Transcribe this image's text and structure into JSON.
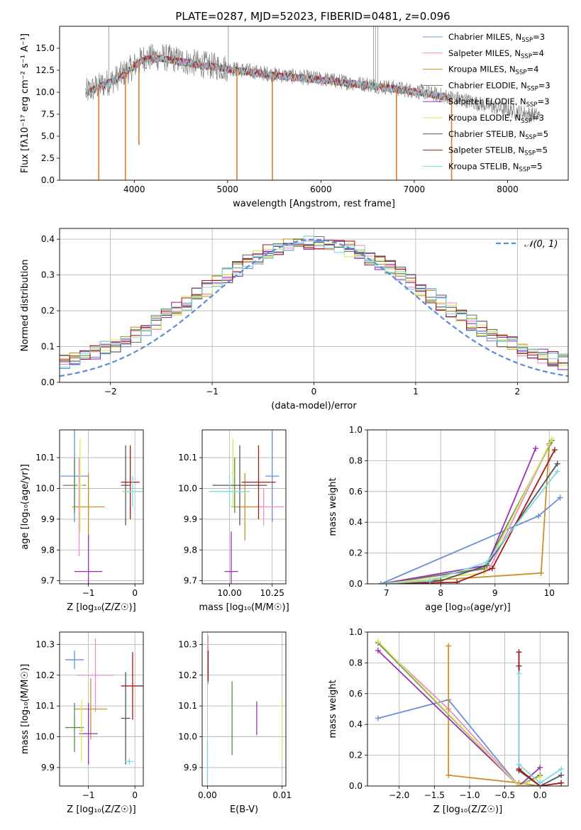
{
  "figure": {
    "title": "PLATE=0287, MJD=52023, FIBERID=0481, z=0.096",
    "colors": {
      "Chabrier MILES": "#6a8fd8",
      "Salpeter MILES": "#e98fc9",
      "Kroupa MILES": "#c8902b",
      "Chabrier ELODIE": "#5e8a52",
      "Salpeter ELODIE": "#9b30b3",
      "Kroupa ELODIE": "#d8e860",
      "Chabrier STELIB": "#555555",
      "Salpeter STELIB": "#a51919",
      "Kroupa STELIB": "#7fdbe0",
      "data": "#7f7f7f",
      "normal": "#5b8bd9",
      "orange": "#e07a28",
      "green": "#8fc830"
    }
  },
  "chart_data": [
    {
      "id": "spectrum",
      "type": "line",
      "title": "PLATE=0287, MJD=52023, FIBERID=0481, z=0.096",
      "xlabel": "wavelength [Angstrom, rest frame]",
      "ylabel": "Flux [fλ10⁻¹⁷ erg cm⁻² s⁻¹ A⁻¹]",
      "xlim": [
        3200,
        8650
      ],
      "ylim": [
        0,
        17.5
      ],
      "xticks": [
        4000,
        5000,
        6000,
        7000,
        8000
      ],
      "yticks": [
        0.0,
        2.5,
        5.0,
        7.5,
        10.0,
        12.5,
        15.0
      ],
      "ytick_labels": [
        "0.0",
        "2.5",
        "5.0",
        "7.5",
        "10.0",
        "12.5",
        "15.0"
      ],
      "legend_position": "upper right",
      "legend": [
        {
          "label": "Chabrier MILES, N",
          "sub": "SSP",
          "tail": "=3"
        },
        {
          "label": "Salpeter MILES, N",
          "sub": "SSP",
          "tail": "=4"
        },
        {
          "label": "Kroupa MILES, N",
          "sub": "SSP",
          "tail": "=4"
        },
        {
          "label": "Chabrier ELODIE, N",
          "sub": "SSP",
          "tail": "=3"
        },
        {
          "label": "Salpeter ELODIE, N",
          "sub": "SSP",
          "tail": "=3"
        },
        {
          "label": "Kroupa ELODIE, N",
          "sub": "SSP",
          "tail": "=3"
        },
        {
          "label": "Chabrier STELIB, N",
          "sub": "SSP",
          "tail": "=5"
        },
        {
          "label": "Salpeter STELIB, N",
          "sub": "SSP",
          "tail": "=5"
        },
        {
          "label": "Kroupa STELIB, N",
          "sub": "SSP",
          "tail": "=5"
        }
      ],
      "continuum": {
        "x": [
          3450,
          3600,
          3800,
          3950,
          4100,
          4300,
          4500,
          4700,
          4900,
          5100,
          5300,
          5500,
          5700,
          5900,
          6100,
          6300,
          6500,
          6700,
          6900,
          7100,
          7300,
          7500,
          7700,
          7900,
          8100,
          8300,
          8500
        ],
        "y": [
          9.8,
          10.6,
          11.5,
          12.6,
          13.9,
          14.0,
          13.6,
          13.2,
          12.9,
          12.6,
          12.3,
          12.0,
          11.8,
          11.6,
          11.4,
          11.1,
          10.9,
          10.6,
          10.3,
          10.0,
          9.6,
          9.2,
          8.7,
          8.2,
          7.8,
          7.4,
          7.1
        ]
      },
      "observed_x_range": [
        3480,
        8350
      ],
      "model_x_range": [
        3480,
        7400
      ],
      "emission_spikes": [
        {
          "x": 3727,
          "y": 17.5
        },
        {
          "x": 5007,
          "y": 17.5
        },
        {
          "x": 6563,
          "y": 17.5
        },
        {
          "x": 6585,
          "y": 17.5
        },
        {
          "x": 6610,
          "y": 17.5
        }
      ],
      "absorption_drops": [
        {
          "x": 3620,
          "y": 0.0
        },
        {
          "x": 3905,
          "y": 0.0
        },
        {
          "x": 4050,
          "y": 4.0
        },
        {
          "x": 5100,
          "y": 0.0
        },
        {
          "x": 5480,
          "y": 0.0
        },
        {
          "x": 6810,
          "y": 0.0
        },
        {
          "x": 7400,
          "y": 0.0
        }
      ]
    },
    {
      "id": "residuals",
      "type": "line",
      "xlabel": "(data-model)/error",
      "ylabel": "Normed distribution",
      "xlim": [
        -2.5,
        2.5
      ],
      "ylim": [
        0,
        0.43
      ],
      "xticks": [
        -2,
        -1,
        0,
        1,
        2
      ],
      "xtick_labels": [
        "−2",
        "−1",
        "0",
        "1",
        "2"
      ],
      "yticks": [
        0.0,
        0.1,
        0.2,
        0.3,
        0.4
      ],
      "ytick_labels": [
        "0.0",
        "0.1",
        "0.2",
        "0.3",
        "0.4"
      ],
      "grid": true,
      "legend_position": "upper right",
      "legend": "𝒩(0, 1)",
      "bin_width": 0.1,
      "gaussian": {
        "mu": 0,
        "sigma": 1
      }
    },
    {
      "id": "age_vs_Z",
      "type": "scatter",
      "xlabel": "Z [log₁₀(Z/Z☉)]",
      "ylabel": "age  [log₁₀(age/yr)]",
      "xlim": [
        -1.62,
        0.18
      ],
      "ylim": [
        9.69,
        10.19
      ],
      "xticks": [
        -1,
        0
      ],
      "xtick_labels": [
        "−1",
        "0"
      ],
      "yticks": [
        9.7,
        9.8,
        9.9,
        10.0,
        10.1
      ],
      "ytick_labels": [
        "9.7",
        "9.8",
        "9.9",
        "10.0",
        "10.1"
      ],
      "grid": true,
      "points": [
        {
          "series": "Chabrier MILES",
          "x": -1.3,
          "xerr": 0.3,
          "y": 10.04,
          "yerr": 0.15
        },
        {
          "series": "Salpeter MILES",
          "x": -1.2,
          "xerr": 0.1,
          "y": 9.94,
          "yerr": 0.16
        },
        {
          "series": "Kroupa MILES",
          "x": -1.0,
          "xerr": 0.35,
          "y": 9.94,
          "yerr": 0.11
        },
        {
          "series": "Chabrier ELODIE",
          "x": -1.3,
          "xerr": 0.25,
          "y": 10.01,
          "yerr": 0.09
        },
        {
          "series": "Salpeter ELODIE",
          "x": -1.0,
          "xerr": 0.3,
          "y": 9.73,
          "yerr": 0.12
        },
        {
          "series": "Kroupa ELODIE",
          "x": -1.18,
          "xerr": 0.06,
          "y": 10.01,
          "yerr": 0.15
        },
        {
          "series": "Chabrier STELIB",
          "x": -0.2,
          "xerr": 0.1,
          "y": 10.01,
          "yerr": 0.13
        },
        {
          "series": "Salpeter STELIB",
          "x": -0.1,
          "xerr": 0.2,
          "y": 10.02,
          "yerr": 0.12
        },
        {
          "series": "Kroupa STELIB",
          "x": -0.05,
          "xerr": 0.22,
          "y": 9.99,
          "yerr": 0.05
        }
      ]
    },
    {
      "id": "age_vs_mass",
      "type": "scatter",
      "xlabel": "mass [log₁₀(M/M☉)]",
      "xlim": [
        9.84,
        10.33
      ],
      "ylim": [
        9.69,
        10.19
      ],
      "xticks": [
        10.0,
        10.25
      ],
      "xtick_labels": [
        "10.00",
        "10.25"
      ],
      "yticks": [
        9.7,
        9.8,
        9.9,
        10.0,
        10.1
      ],
      "ytick_labels": [
        "9.7",
        "9.8",
        "9.9",
        "10.0",
        "10.1"
      ],
      "grid": true,
      "points": [
        {
          "series": "Chabrier MILES",
          "x": 10.25,
          "xerr": 0.04,
          "y": 10.04,
          "yerr": 0.15
        },
        {
          "series": "Salpeter MILES",
          "x": 10.2,
          "xerr": 0.12,
          "y": 9.94,
          "yerr": 0.06
        },
        {
          "series": "Kroupa MILES",
          "x": 10.09,
          "xerr": 0.08,
          "y": 9.94,
          "yerr": 0.11
        },
        {
          "series": "Chabrier ELODIE",
          "x": 10.03,
          "xerr": 0.01,
          "y": 10.01,
          "yerr": 0.09
        },
        {
          "series": "Salpeter ELODIE",
          "x": 10.01,
          "xerr": 0.04,
          "y": 9.73,
          "yerr": 0.13
        },
        {
          "series": "Kroupa ELODIE",
          "x": 10.02,
          "xerr": 0.01,
          "y": 10.05,
          "yerr": 0.11
        },
        {
          "series": "Chabrier STELIB",
          "x": 10.06,
          "xerr": 0.16,
          "y": 10.01,
          "yerr": 0.13
        },
        {
          "series": "Salpeter STELIB",
          "x": 10.17,
          "xerr": 0.1,
          "y": 10.02,
          "yerr": 0.12
        },
        {
          "series": "Kroupa STELIB",
          "x": 10.0,
          "xerr": 0.12,
          "y": 9.99,
          "yerr": 0.05
        }
      ]
    },
    {
      "id": "mass_weight_vs_age",
      "type": "line",
      "xlabel": "age  [log₁₀(age/yr)]",
      "ylabel": "mass weight",
      "xlim": [
        6.65,
        10.35
      ],
      "ylim": [
        0,
        1.0
      ],
      "xticks": [
        7,
        8,
        9,
        10
      ],
      "yticks": [
        0.0,
        0.2,
        0.4,
        0.6,
        0.8,
        1.0
      ],
      "ytick_labels": [
        "0.0",
        "0.2",
        "0.4",
        "0.6",
        "0.8",
        "1.0"
      ],
      "grid": true,
      "series": [
        {
          "name": "Chabrier MILES",
          "x": [
            6.9,
            9.8,
            10.2
          ],
          "y": [
            0.0,
            0.44,
            0.56
          ]
        },
        {
          "name": "Salpeter MILES",
          "x": [
            6.9,
            8.9,
            10.0
          ],
          "y": [
            0.0,
            0.1,
            0.9
          ]
        },
        {
          "name": "Kroupa MILES",
          "x": [
            6.9,
            9.85,
            10.0
          ],
          "y": [
            0.0,
            0.07,
            0.91
          ]
        },
        {
          "name": "Chabrier ELODIE",
          "x": [
            6.9,
            8.8,
            10.05
          ],
          "y": [
            0.0,
            0.1,
            0.93
          ]
        },
        {
          "name": "Salpeter ELODIE",
          "x": [
            6.9,
            8.85,
            9.75
          ],
          "y": [
            0.0,
            0.12,
            0.88
          ]
        },
        {
          "name": "Kroupa ELODIE",
          "x": [
            6.9,
            8.8,
            10.05
          ],
          "y": [
            0.0,
            0.07,
            0.94
          ]
        },
        {
          "name": "Chabrier STELIB",
          "x": [
            6.9,
            8.0,
            8.85,
            10.15
          ],
          "y": [
            0.0,
            0.02,
            0.12,
            0.78
          ]
        },
        {
          "name": "Salpeter STELIB",
          "x": [
            6.9,
            8.3,
            8.95,
            10.1
          ],
          "y": [
            0.0,
            0.01,
            0.1,
            0.87
          ]
        },
        {
          "name": "Kroupa STELIB",
          "x": [
            6.9,
            7.8,
            8.85,
            10.15
          ],
          "y": [
            0.0,
            0.02,
            0.14,
            0.73
          ]
        }
      ]
    },
    {
      "id": "mass_vs_Z",
      "type": "scatter",
      "xlabel": "Z [log₁₀(Z/Z☉)]",
      "ylabel": "mass [log₁₀(M/M☉)]",
      "xlim": [
        -1.62,
        0.18
      ],
      "ylim": [
        9.84,
        10.34
      ],
      "xticks": [
        -1,
        0
      ],
      "xtick_labels": [
        "−1",
        "0"
      ],
      "yticks": [
        9.9,
        10.0,
        10.1,
        10.2,
        10.3
      ],
      "ytick_labels": [
        "9.9",
        "10.0",
        "10.1",
        "10.2",
        "10.3"
      ],
      "grid": true,
      "points": [
        {
          "series": "Chabrier MILES",
          "x": -1.3,
          "xerr": 0.2,
          "y": 10.25,
          "yerr": 0.03
        },
        {
          "series": "Salpeter MILES",
          "x": -0.85,
          "xerr": 0.4,
          "y": 10.2,
          "yerr": 0.12
        },
        {
          "series": "Kroupa MILES",
          "x": -0.95,
          "xerr": 0.35,
          "y": 10.09,
          "yerr": 0.1
        },
        {
          "series": "Chabrier ELODIE",
          "x": -1.3,
          "xerr": 0.2,
          "y": 10.03,
          "yerr": 0.08
        },
        {
          "series": "Salpeter ELODIE",
          "x": -1.0,
          "xerr": 0.2,
          "y": 10.01,
          "yerr": 0.1
        },
        {
          "series": "Kroupa ELODIE",
          "x": -1.15,
          "xerr": 0.05,
          "y": 10.02,
          "yerr": 0.1
        },
        {
          "series": "Chabrier STELIB",
          "x": -0.2,
          "xerr": 0.1,
          "y": 10.06,
          "yerr": 0.15
        },
        {
          "series": "Salpeter STELIB",
          "x": -0.05,
          "xerr": 0.25,
          "y": 10.165,
          "yerr": 0.11
        },
        {
          "series": "Kroupa STELIB",
          "x": -0.12,
          "xerr": 0.1,
          "y": 9.92,
          "yerr": 0.01
        }
      ]
    },
    {
      "id": "mass_vs_EBV",
      "type": "scatter",
      "xlabel": "E(B-V)",
      "xlim": [
        -0.0007,
        0.0105
      ],
      "ylim": [
        9.84,
        10.34
      ],
      "xticks": [
        0.0,
        0.01
      ],
      "xtick_labels": [
        "0.00",
        "0.01"
      ],
      "yticks": [
        9.9,
        10.0,
        10.1,
        10.2,
        10.3
      ],
      "ytick_labels": [
        "9.9",
        "10.0",
        "10.1",
        "10.2",
        "10.3"
      ],
      "grid": true,
      "points": [
        {
          "series": "Salpeter MILES",
          "x": 0.0001,
          "y": 10.25,
          "yerr": 0.08
        },
        {
          "series": "Salpeter STELIB",
          "x": 0.0001,
          "y": 10.23,
          "yerr": 0.05
        },
        {
          "series": "Kroupa STELIB",
          "x": 0.0,
          "y": 9.92,
          "yerr": 0.07
        },
        {
          "series": "Chabrier ELODIE",
          "x": 0.0033,
          "y": 10.06,
          "yerr": 0.12
        },
        {
          "series": "Salpeter ELODIE",
          "x": 0.0066,
          "y": 10.06,
          "yerr": 0.055
        },
        {
          "series": "Kroupa ELODIE",
          "x": 0.01,
          "y": 10.02,
          "yerr": 0.1
        }
      ]
    },
    {
      "id": "mass_weight_vs_Z",
      "type": "line",
      "xlabel": "Z [log₁₀(Z/Z☉)]",
      "ylabel": "mass weight",
      "xlim": [
        -2.45,
        0.4
      ],
      "ylim": [
        0,
        1.0
      ],
      "xticks": [
        -2.0,
        -1.5,
        -1.0,
        -0.5,
        0.0
      ],
      "xtick_labels": [
        "−2.0",
        "−1.5",
        "−1.0",
        "−0.5",
        "0.0"
      ],
      "yticks": [
        0.0,
        0.2,
        0.4,
        0.6,
        0.8,
        1.0
      ],
      "ytick_labels": [
        "0.0",
        "0.2",
        "0.4",
        "0.6",
        "0.8",
        "1.0"
      ],
      "grid": true,
      "series": [
        {
          "name": "Chabrier MILES",
          "x": [
            -2.3,
            -1.3,
            -0.3,
            0.0
          ],
          "y": [
            0.44,
            0.56,
            0.0,
            0.0
          ]
        },
        {
          "name": "Salpeter MILES",
          "x": [
            -2.3,
            -1.3,
            -0.3,
            0.0
          ],
          "y": [
            0.93,
            0.5,
            0.0,
            0.07
          ]
        },
        {
          "name": "Kroupa MILES",
          "x": [
            -1.3,
            -1.3,
            -0.3,
            0.0
          ],
          "y": [
            0.91,
            0.07,
            0.02,
            0.0
          ]
        },
        {
          "name": "Chabrier ELODIE",
          "x": [
            -2.3,
            -0.3,
            0.0
          ],
          "y": [
            0.93,
            0.0,
            0.07
          ]
        },
        {
          "name": "Salpeter ELODIE",
          "x": [
            -2.3,
            -0.3,
            0.0
          ],
          "y": [
            0.88,
            0.0,
            0.12
          ]
        },
        {
          "name": "Kroupa ELODIE",
          "x": [
            -2.3,
            -0.3,
            0.0
          ],
          "y": [
            0.94,
            0.0,
            0.06
          ]
        },
        {
          "name": "Chabrier STELIB",
          "x": [
            -0.3,
            -0.3,
            0.0,
            0.3
          ],
          "y": [
            0.78,
            0.1,
            0.0,
            0.07
          ]
        },
        {
          "name": "Salpeter STELIB",
          "x": [
            -0.3,
            -0.3,
            0.0,
            0.3
          ],
          "y": [
            0.87,
            0.11,
            0.0,
            0.02
          ]
        },
        {
          "name": "Kroupa STELIB",
          "x": [
            -0.3,
            -0.3,
            0.0,
            0.3
          ],
          "y": [
            0.73,
            0.14,
            0.02,
            0.11
          ]
        }
      ]
    }
  ]
}
